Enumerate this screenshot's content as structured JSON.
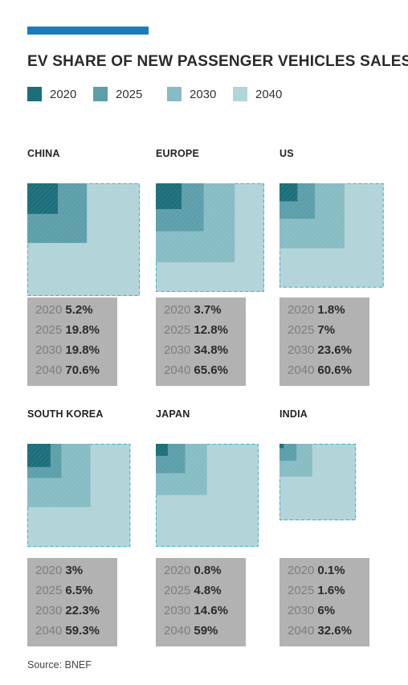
{
  "title": "EV SHARE OF NEW PASSENGER VEHICLES SALES",
  "source": "Source: BNEF",
  "colors": {
    "accent": "#1a7bbf",
    "y2020": "#1b6e7a",
    "y2025": "#5c9eaa",
    "y2030": "#86bcc3",
    "y2040": "#b3d5da",
    "outline": "#3ab0c8",
    "stats_bg": "#b2b2b2"
  },
  "legend": [
    {
      "label": "2020",
      "color": "#1b6e7a"
    },
    {
      "label": "2025",
      "color": "#5c9eaa"
    },
    {
      "label": "2030",
      "color": "#86bcc3"
    },
    {
      "label": "2040",
      "color": "#b3d5da"
    }
  ],
  "chart_data": {
    "type": "nested-square",
    "years": [
      "2020",
      "2025",
      "2030",
      "2040"
    ],
    "panels": [
      {
        "name": "CHINA",
        "values": [
          5.2,
          19.8,
          19.8,
          70.6
        ],
        "labels": [
          "5.2%",
          "19.8%",
          "19.8%",
          "70.6%"
        ]
      },
      {
        "name": "EUROPE",
        "values": [
          3.7,
          12.8,
          34.8,
          65.6
        ],
        "labels": [
          "3.7%",
          "12.8%",
          "34.8%",
          "65.6%"
        ]
      },
      {
        "name": "US",
        "values": [
          1.8,
          7,
          23.6,
          60.6
        ],
        "labels": [
          "1.8%",
          "7%",
          "23.6%",
          "60.6%"
        ]
      },
      {
        "name": "SOUTH KOREA",
        "values": [
          3,
          6.5,
          22.3,
          59.3
        ],
        "labels": [
          "3%",
          "6.5%",
          "22.3%",
          "59.3%"
        ]
      },
      {
        "name": "JAPAN",
        "values": [
          0.8,
          4.8,
          14.6,
          59
        ],
        "labels": [
          "0.8%",
          "4.8%",
          "14.6%",
          "59%"
        ]
      },
      {
        "name": "INDIA",
        "values": [
          0.1,
          1.6,
          6,
          32.6
        ],
        "labels": [
          "0.1%",
          "1.6%",
          "6%",
          "32.6%"
        ]
      }
    ]
  }
}
